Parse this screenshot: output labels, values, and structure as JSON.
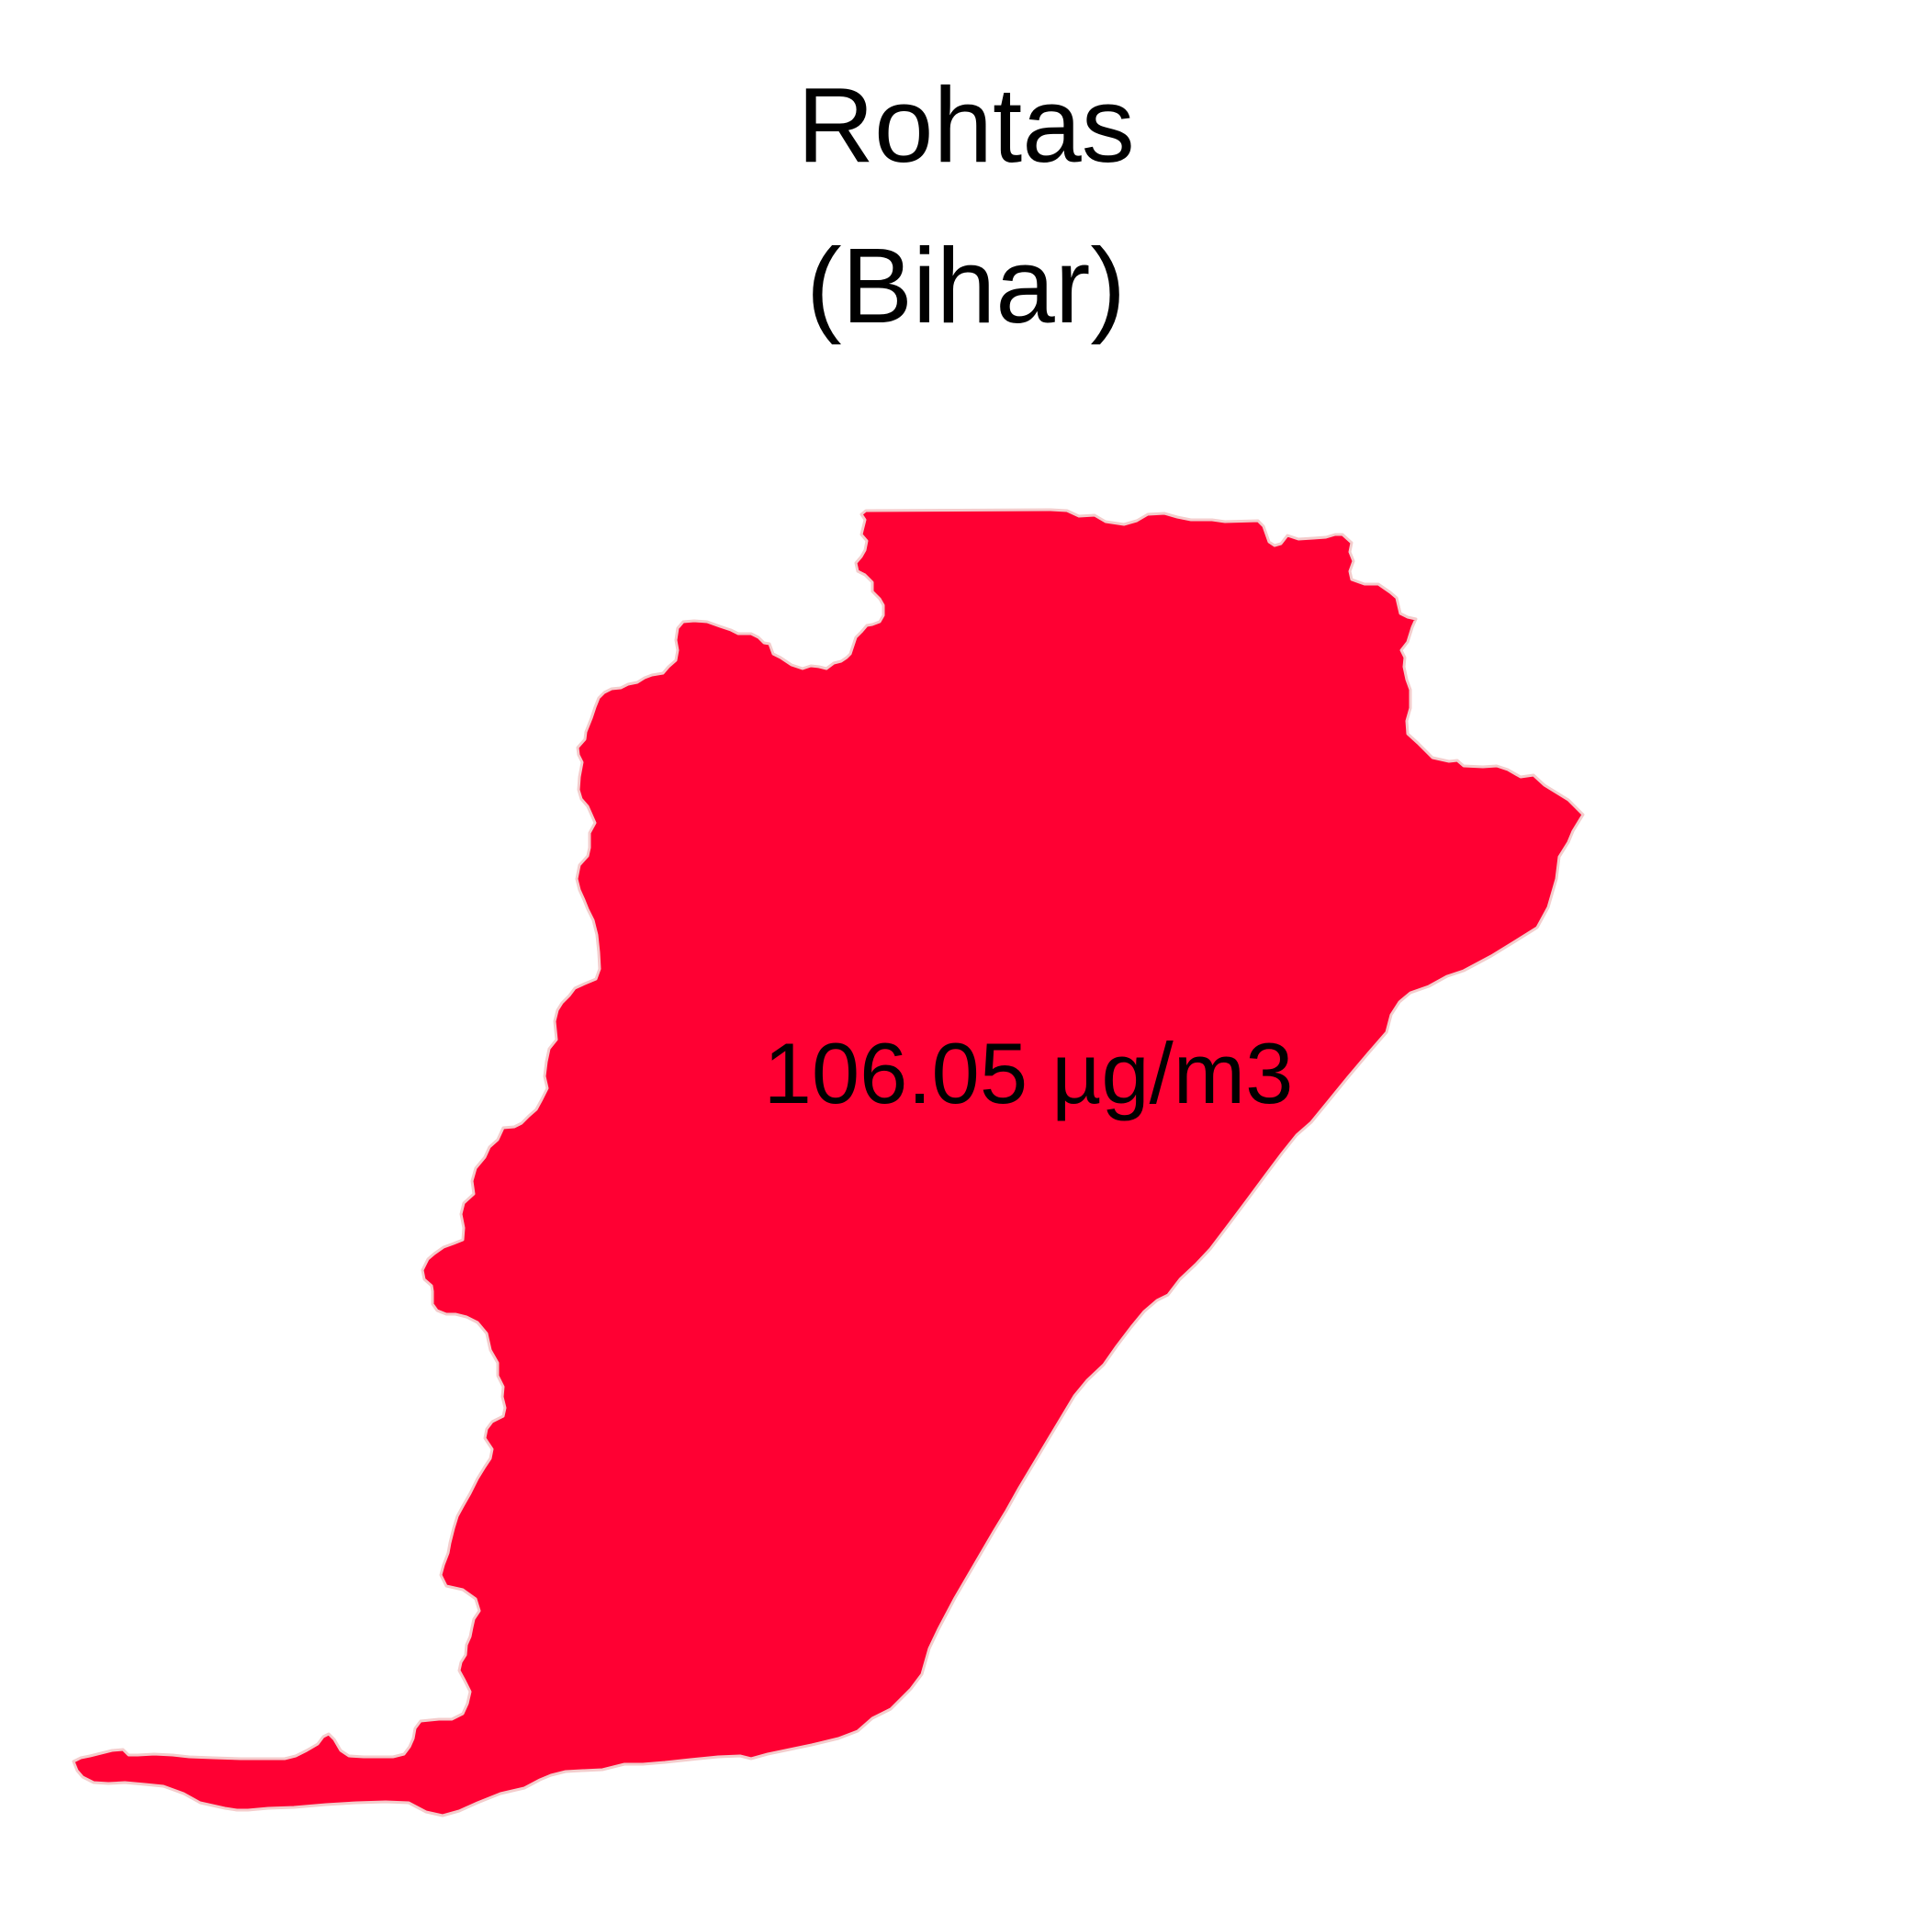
{
  "map": {
    "title_line1": "Rohtas",
    "title_line2": "(Bihar)",
    "value_label": "106.05 µg/m3",
    "region_name": "Rohtas",
    "state_name": "Bihar",
    "value": 106.05,
    "unit": "µg/m3",
    "region_fill_color": "#ff0033",
    "region_stroke_color": "#f4cccc",
    "background_color": "#ffffff"
  }
}
